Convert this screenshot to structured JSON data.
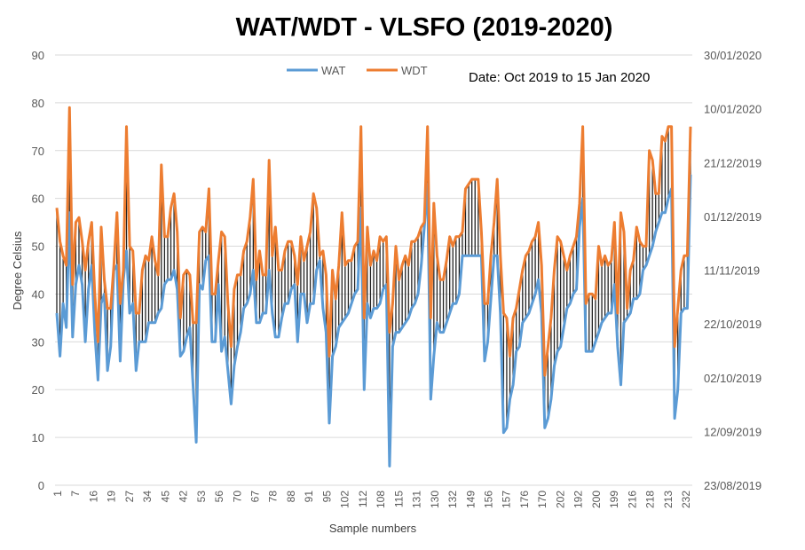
{
  "chart_data": {
    "type": "line",
    "title": "WAT/WDT - VLSFO (2019-2020)",
    "annotation": "Date: Oct 2019 to 15 Jan 2020",
    "xlabel": "Sample numbers",
    "ylabel": "Degree Celsius",
    "ylim": [
      0,
      90
    ],
    "yticks": [
      0,
      10,
      20,
      30,
      40,
      50,
      60,
      70,
      80,
      90
    ],
    "y2_ticks": [
      "23/08/2019",
      "12/09/2019",
      "02/10/2019",
      "22/10/2019",
      "11/11/2019",
      "01/12/2019",
      "21/12/2019",
      "10/01/2020",
      "30/01/2020"
    ],
    "x_tick_labels": [
      "1",
      "7",
      "16",
      "19",
      "27",
      "34",
      "45",
      "42",
      "53",
      "56",
      "70",
      "67",
      "78",
      "88",
      "91",
      "95",
      "102",
      "112",
      "108",
      "115",
      "131",
      "130",
      "132",
      "149",
      "156",
      "157",
      "176",
      "170",
      "202",
      "192",
      "200",
      "199",
      "216",
      "218",
      "213",
      "232"
    ],
    "grid": true,
    "legend_position": "top",
    "colors": {
      "WAT": "#5B9BD5",
      "WDT": "#ED7D31"
    },
    "series": [
      {
        "name": "WAT",
        "values": [
          36,
          27,
          38,
          33,
          57,
          31,
          42,
          46,
          42,
          30,
          41,
          46,
          32,
          22,
          38,
          40,
          24,
          29,
          45,
          46,
          26,
          43,
          49,
          36,
          38,
          24,
          30,
          30,
          30,
          34,
          34,
          34,
          36,
          37,
          42,
          43,
          43,
          45,
          41,
          27,
          28,
          31,
          33,
          21,
          9,
          42,
          41,
          47,
          48,
          30,
          30,
          42,
          28,
          31,
          24,
          17,
          25,
          29,
          32,
          37,
          38,
          40,
          45,
          34,
          34,
          36,
          36,
          45,
          36,
          31,
          31,
          35,
          38,
          38,
          41,
          42,
          30,
          40,
          40,
          34,
          38,
          38,
          45,
          47,
          37,
          32,
          13,
          27,
          29,
          33,
          34,
          35,
          36,
          38,
          40,
          41,
          58,
          20,
          38,
          35,
          37,
          37,
          38,
          41,
          42,
          4,
          29,
          32,
          32,
          33,
          34,
          35,
          37,
          38,
          40,
          46,
          54,
          63,
          18,
          27,
          34,
          32,
          32,
          34,
          36,
          38,
          38,
          40,
          48,
          48,
          48,
          48,
          48,
          48,
          48,
          26,
          30,
          39,
          48,
          48,
          36,
          11,
          12,
          18,
          21,
          28,
          29,
          34,
          35,
          36,
          38,
          40,
          43,
          36,
          12,
          14,
          18,
          25,
          28,
          29,
          33,
          37,
          38,
          40,
          41,
          54,
          60,
          28,
          28,
          28,
          30,
          32,
          34,
          35,
          36,
          36,
          42,
          29,
          21,
          34,
          35,
          36,
          39,
          39,
          40,
          45,
          46,
          48,
          50,
          53,
          55,
          57,
          57,
          60,
          62,
          14,
          20,
          36,
          37,
          37,
          65
        ]
      },
      {
        "name": "WDT",
        "values": [
          58,
          51,
          48,
          46,
          79,
          42,
          55,
          56,
          51,
          45,
          51,
          55,
          40,
          30,
          54,
          43,
          37,
          37,
          46,
          57,
          38,
          45,
          75,
          50,
          49,
          36,
          36,
          45,
          48,
          47,
          52,
          47,
          44,
          67,
          52,
          52,
          58,
          61,
          53,
          35,
          44,
          45,
          44,
          34,
          34,
          53,
          54,
          53,
          62,
          40,
          40,
          47,
          53,
          52,
          38,
          29,
          41,
          44,
          44,
          49,
          51,
          56,
          64,
          43,
          49,
          44,
          44,
          68,
          48,
          54,
          45,
          45,
          49,
          51,
          51,
          48,
          42,
          52,
          47,
          50,
          53,
          61,
          58,
          48,
          49,
          44,
          27,
          45,
          39,
          46,
          57,
          46,
          47,
          47,
          50,
          51,
          75,
          35,
          54,
          46,
          49,
          47,
          52,
          51,
          52,
          32,
          38,
          50,
          43,
          46,
          48,
          46,
          51,
          51,
          52,
          54,
          55,
          75,
          35,
          59,
          48,
          43,
          43,
          47,
          52,
          50,
          52,
          52,
          53,
          62,
          63,
          64,
          64,
          64,
          53,
          38,
          38,
          48,
          55,
          64,
          48,
          36,
          35,
          27,
          35,
          37,
          41,
          45,
          48,
          49,
          51,
          52,
          55,
          46,
          23,
          29,
          35,
          45,
          52,
          51,
          48,
          45,
          48,
          50,
          52,
          59,
          75,
          38,
          40,
          40,
          39,
          50,
          46,
          48,
          46,
          47,
          55,
          36,
          57,
          53,
          37,
          45,
          47,
          54,
          51,
          50,
          50,
          70,
          68,
          61,
          61,
          73,
          72,
          75,
          75,
          29,
          37,
          45,
          48,
          48,
          75
        ]
      }
    ]
  }
}
